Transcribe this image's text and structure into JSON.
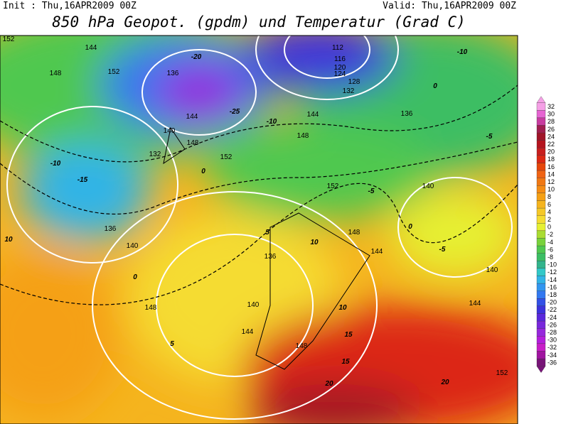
{
  "header": {
    "init": "Init : Thu,16APR2009 00Z",
    "valid": "Valid: Thu,16APR2009 00Z",
    "title": "850 hPa Geopot. (gpdm) und Temperatur (Grad C)"
  },
  "colorbar": {
    "values": [
      32,
      30,
      28,
      26,
      24,
      22,
      20,
      18,
      16,
      14,
      12,
      10,
      8,
      6,
      4,
      2,
      0,
      -2,
      -4,
      -6,
      -8,
      -10,
      -12,
      -14,
      -16,
      -18,
      -20,
      -22,
      -24,
      -26,
      -28,
      -30,
      -32,
      -34,
      -36
    ],
    "colors": [
      "#f5a0e6",
      "#e664d2",
      "#c83ca0",
      "#a01e50",
      "#a01428",
      "#b4141e",
      "#c81e1e",
      "#dc2814",
      "#e6460a",
      "#f06414",
      "#f07814",
      "#f58c14",
      "#f5a014",
      "#f5b41e",
      "#f5c828",
      "#f5dc32",
      "#e6f032",
      "#aadc32",
      "#78d23c",
      "#50c850",
      "#3cbe64",
      "#32b48c",
      "#32c8c8",
      "#32b4e6",
      "#3296f0",
      "#3278f0",
      "#3250e6",
      "#3c32dc",
      "#5a28dc",
      "#7828dc",
      "#9628dc",
      "#b41edc",
      "#c81ec8",
      "#a014a0",
      "#781478"
    ]
  },
  "contour_labels": [
    "152",
    "144",
    "148",
    "152",
    "136",
    "132",
    "140",
    "148",
    "144",
    "112",
    "116",
    "120",
    "124",
    "128",
    "132",
    "136",
    "140",
    "144",
    "152",
    "148",
    "152",
    "136",
    "140",
    "148",
    "144",
    "136",
    "140",
    "144",
    "148",
    "148",
    "140",
    "144",
    "152",
    "-10",
    "-15",
    "-20",
    "-25",
    "-10",
    "-5",
    "0",
    "0",
    "5",
    "5",
    "10",
    "10",
    "15",
    "15",
    "20",
    "20",
    "-10",
    "-5",
    "0",
    "10",
    "-5",
    "0"
  ]
}
